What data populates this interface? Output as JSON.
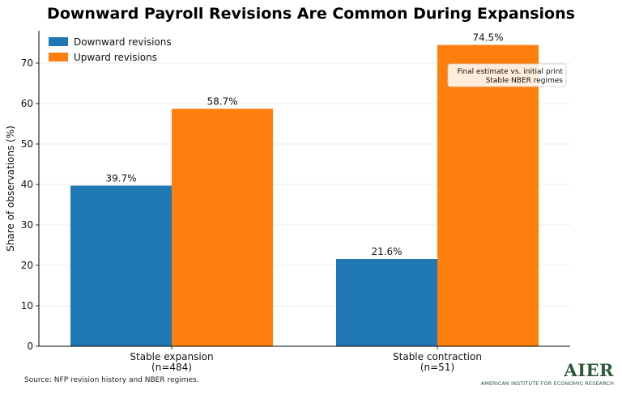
{
  "chart_data": {
    "type": "bar",
    "title": "Downward Payroll Revisions Are Common During Expansions",
    "ylabel": "Share of observations (%)",
    "xlabel": "",
    "ylim": [
      0,
      78
    ],
    "yticks": [
      0,
      10,
      20,
      30,
      40,
      50,
      60,
      70
    ],
    "grid": true,
    "legend": "top-left",
    "categories": [
      [
        "Stable expansion",
        "(n=484)"
      ],
      [
        "Stable contraction",
        "(n=51)"
      ]
    ],
    "series": [
      {
        "name": "Downward revisions",
        "color": "#1f77b4",
        "values": [
          39.7,
          21.6
        ],
        "labels": [
          "39.7%",
          "21.6%"
        ]
      },
      {
        "name": "Upward revisions",
        "color": "#ff7f0e",
        "values": [
          58.7,
          74.5
        ],
        "labels": [
          "58.7%",
          "74.5%"
        ]
      }
    ],
    "annotation": [
      "Final estimate vs. initial print",
      "Stable NBER regimes"
    ]
  },
  "source": "Source: NFP revision history and NBER regimes.",
  "logo": {
    "mark": "AIER",
    "subtitle": "AMERICAN INSTITUTE FOR ECONOMIC RESEARCH"
  }
}
